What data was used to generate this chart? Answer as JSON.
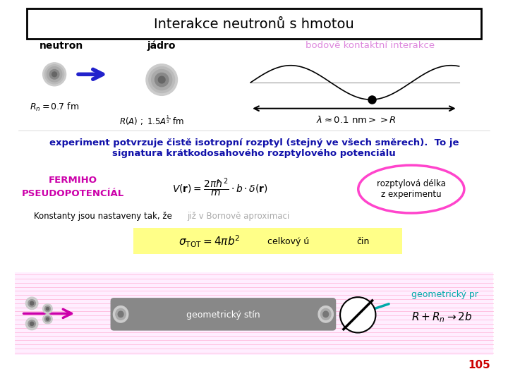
{
  "title": "Interakce neutronů s hmotou",
  "bg_color": "#e8e8e8",
  "white_bg": "#ffffff",
  "neutron_label": "neutron",
  "jadro_label": "jádro",
  "bodove_text": "bodově kontaktní interakce",
  "experiment_line1": "experiment potvrzuje čistě isotropní rozptyl (stejný ve všech směrech).  To je",
  "experiment_line2": "signatura krátkodosahového rozptylového potenciálu",
  "fermiho_text": "FERMIHO\nPSEUDOPOTENCÍÁL",
  "rozptylova_text": "rozptylová délka\nz experimentu",
  "konstanty_text": "Konstanty jsou nastaveny tak, že",
  "bornova_text": "již v Bornově aproximaci",
  "sigma_extra2": "čin",
  "geom_label": "geometrický stín",
  "geom_pr_text": "geometrický pr",
  "page_num": "105",
  "magenta": "#ff44cc",
  "magenta_dark": "#cc00aa",
  "blue_dark": "#1111aa",
  "teal": "#00aaaa",
  "yellow_bg": "#ffff88"
}
